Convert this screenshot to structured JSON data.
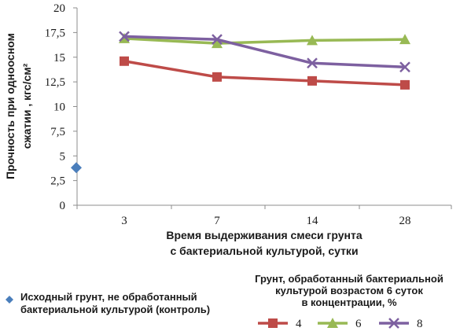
{
  "chart_data": {
    "type": "line",
    "x_categories": [
      "3",
      "7",
      "14",
      "28"
    ],
    "ylim": [
      0,
      20
    ],
    "yticks": [
      "0",
      "2,5",
      "5",
      "7,5",
      "10",
      "12,5",
      "15",
      "17,5",
      "20"
    ],
    "ylabel_lines": [
      "Прочность при одноосном",
      "сжатии , кгс/см²"
    ],
    "xlabel_lines": [
      "Время выдерживания смеси грунта",
      "с бактериальной культурой, сутки"
    ],
    "control": {
      "label_lines": [
        "Исходный грунт, не обработанный",
        "бактериальной культурой (контроль)"
      ],
      "value": 3.8,
      "color": "#4a7ebb"
    },
    "series_legend_title_lines": [
      "Грунт, обработанный бактериальной",
      "культурой возрастом 6 суток",
      "в концентрации, %"
    ],
    "series": [
      {
        "name": "4",
        "values": [
          14.6,
          13.0,
          12.6,
          12.2
        ],
        "color": "#be4b48",
        "marker": "square"
      },
      {
        "name": "6",
        "values": [
          16.9,
          16.4,
          16.7,
          16.8
        ],
        "color": "#98b954",
        "marker": "triangle"
      },
      {
        "name": "8",
        "values": [
          17.1,
          16.8,
          14.4,
          14.0
        ],
        "color": "#7d60a0",
        "marker": "x"
      }
    ],
    "grid": false
  }
}
